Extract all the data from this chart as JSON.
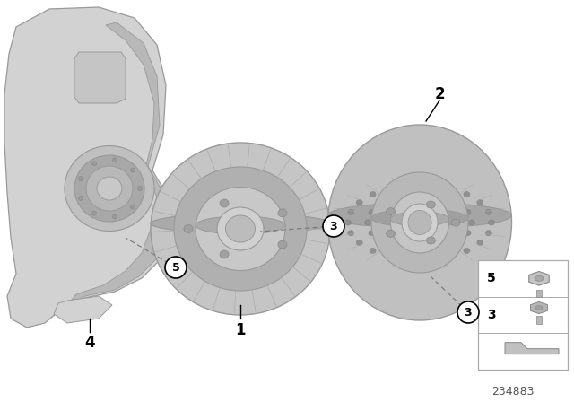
{
  "title": "",
  "diagram_number": "234883",
  "bg_color": "#ffffff",
  "colors": {
    "bg": "#ffffff",
    "part_gray": "#b8b8b8",
    "part_dark_gray": "#888888",
    "part_light": "#d0d0d0",
    "callout_circle": "#ffffff",
    "callout_border": "#000000",
    "line_color": "#555555",
    "text_color": "#000000",
    "box_border": "#888888"
  }
}
